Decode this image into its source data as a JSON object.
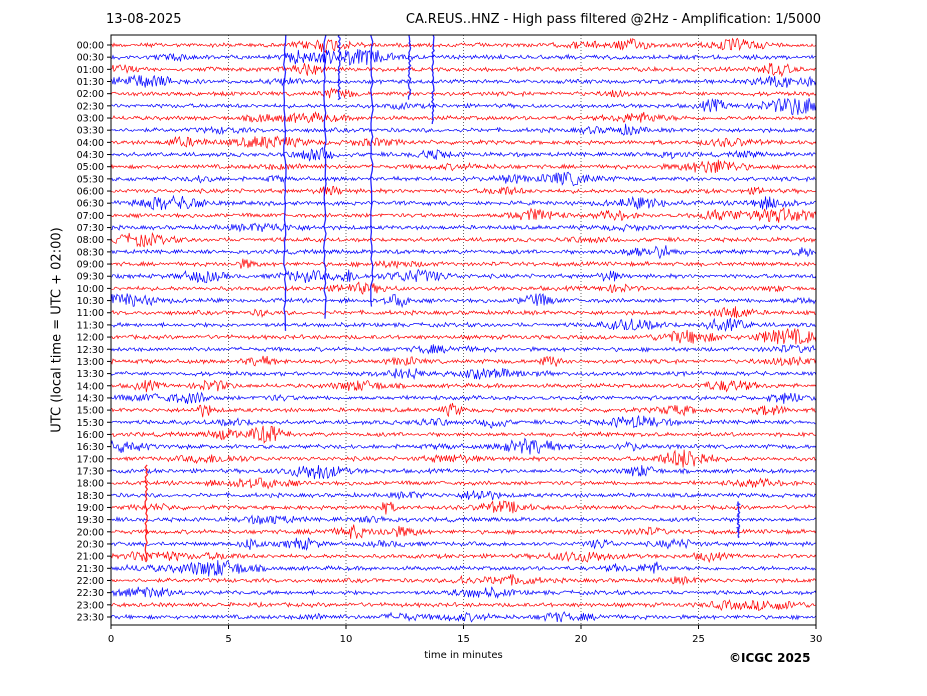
{
  "header": {
    "date": "13-08-2025",
    "title": "CA.REUS..HNZ - High pass filtered @2Hz - Amplification: 1/5000"
  },
  "footer": {
    "copyright": "©ICGC 2025"
  },
  "chart_data": {
    "type": "line",
    "title": "CA.REUS..HNZ - High pass filtered @2Hz - Amplification: 1/5000",
    "xlabel": "time in minutes",
    "ylabel": "UTC (local time = UTC + 02:00)",
    "xlim": [
      0,
      30
    ],
    "x_ticks": [
      "0",
      "5",
      "10",
      "15",
      "20",
      "25",
      "30"
    ],
    "grid": "vertical dotted at each 5 minutes",
    "row_colors": [
      "#ff0000",
      "#0000ff"
    ],
    "rows": [
      "00:00",
      "00:30",
      "01:00",
      "01:30",
      "02:00",
      "02:30",
      "03:00",
      "03:30",
      "04:00",
      "04:30",
      "05:00",
      "05:30",
      "06:00",
      "06:30",
      "07:00",
      "07:30",
      "08:00",
      "08:30",
      "09:00",
      "09:30",
      "10:00",
      "10:30",
      "11:00",
      "11:30",
      "12:00",
      "12:30",
      "13:00",
      "13:30",
      "14:00",
      "14:30",
      "15:00",
      "15:30",
      "16:00",
      "16:30",
      "17:00",
      "17:30",
      "18:00",
      "18:30",
      "19:00",
      "19:30",
      "20:00",
      "20:30",
      "21:00",
      "21:30",
      "22:00",
      "22:30",
      "23:00",
      "23:30"
    ],
    "events": [
      {
        "minute": 7.4,
        "rows_from": 0,
        "rows_to": 23,
        "color": "#0000ff"
      },
      {
        "minute": 9.1,
        "rows_from": 0,
        "rows_to": 22,
        "color": "#0000ff"
      },
      {
        "minute": 9.7,
        "rows_from": 0,
        "rows_to": 4,
        "color": "#0000ff"
      },
      {
        "minute": 11.1,
        "rows_from": 0,
        "rows_to": 21,
        "color": "#0000ff"
      },
      {
        "minute": 12.7,
        "rows_from": 0,
        "rows_to": 4,
        "color": "#0000ff"
      },
      {
        "minute": 13.7,
        "rows_from": 0,
        "rows_to": 6,
        "color": "#0000ff"
      },
      {
        "minute": 1.5,
        "rows_from": 35,
        "rows_to": 42,
        "color": "#ff0000"
      },
      {
        "minute": 26.7,
        "rows_from": 38,
        "rows_to": 40,
        "color": "#0000ff"
      }
    ]
  }
}
